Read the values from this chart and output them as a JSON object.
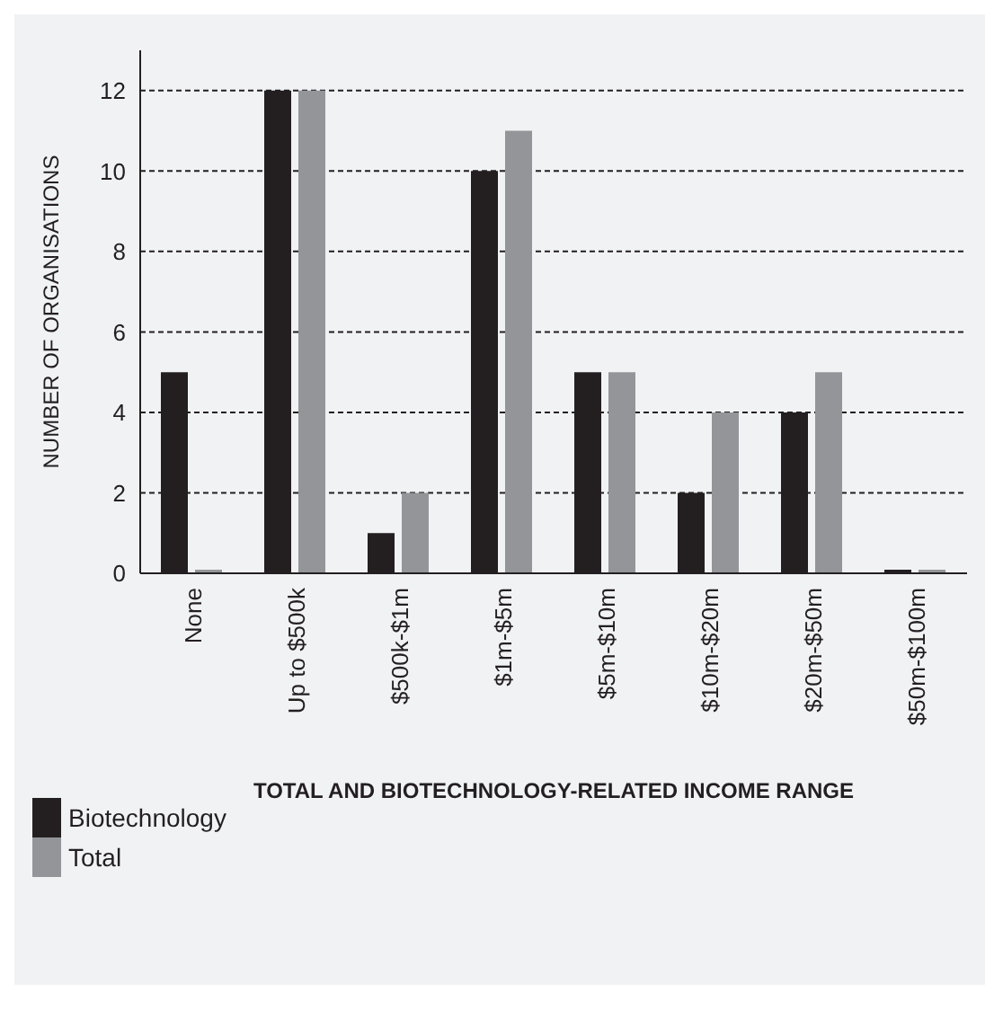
{
  "chart_data": {
    "type": "bar",
    "xlabel": "TOTAL AND BIOTECHNOLOGY-RELATED INCOME RANGE",
    "ylabel": "NUMBER OF ORGANISATIONS",
    "categories": [
      "None",
      "Up to $500k",
      "$500k-$1m",
      "$1m-$5m",
      "$5m-$10m",
      "$10m-$20m",
      "$20m-$50m",
      "$50m-$100m"
    ],
    "series": [
      {
        "name": "Biotechnology",
        "color": "#231f20",
        "values": [
          5,
          12,
          1,
          10,
          5,
          2,
          4,
          0
        ]
      },
      {
        "name": "Total",
        "color": "#939598",
        "values": [
          0,
          12,
          2,
          11,
          5,
          4,
          5,
          0
        ]
      }
    ],
    "ylim": [
      0,
      13
    ],
    "yticks": [
      0,
      2,
      4,
      6,
      8,
      10,
      12
    ],
    "grid": "y",
    "legend": "bottom left"
  }
}
